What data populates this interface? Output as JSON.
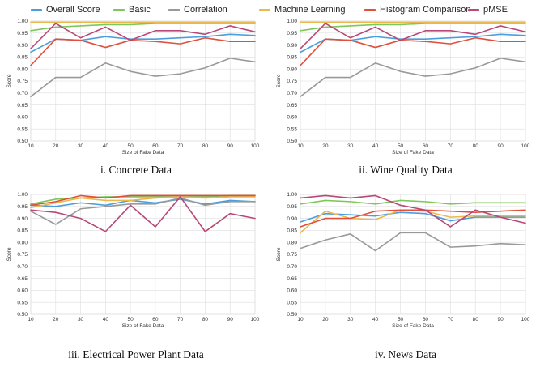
{
  "legend": [
    {
      "name": "Overall Score",
      "color": "#4a9ee0"
    },
    {
      "name": "Basic",
      "color": "#7dc85a"
    },
    {
      "name": "Correlation",
      "color": "#999999"
    },
    {
      "name": "Machine Learning",
      "color": "#eab84c"
    },
    {
      "name": "Histogram Comparison",
      "color": "#e0503a"
    },
    {
      "name": "pMSE",
      "color": "#b84878"
    }
  ],
  "chart_data": [
    {
      "type": "line",
      "caption": "i. Concrete Data",
      "xlabel": "Size of Fake Data",
      "ylabel": "Score",
      "x": [
        10,
        20,
        30,
        40,
        50,
        60,
        70,
        80,
        90,
        100
      ],
      "xlim": [
        10,
        100
      ],
      "ylim": [
        0.5,
        1.0
      ],
      "yticks": [
        "0.50",
        "0.55",
        "0.60",
        "0.65",
        "0.70",
        "0.75",
        "0.80",
        "0.85",
        "0.90",
        "0.95",
        "1.00"
      ],
      "grid": true,
      "series": [
        {
          "name": "Overall Score",
          "values": [
            0.87,
            0.925,
            0.92,
            0.935,
            0.925,
            0.925,
            0.93,
            0.935,
            0.945,
            0.94
          ]
        },
        {
          "name": "Basic",
          "values": [
            0.96,
            0.975,
            0.98,
            0.985,
            0.985,
            0.99,
            0.99,
            0.99,
            0.99,
            0.99
          ]
        },
        {
          "name": "Correlation",
          "values": [
            0.685,
            0.765,
            0.765,
            0.825,
            0.79,
            0.77,
            0.78,
            0.805,
            0.845,
            0.83
          ]
        },
        {
          "name": "Machine Learning",
          "values": [
            0.995,
            0.995,
            0.995,
            0.995,
            0.995,
            0.995,
            0.995,
            0.995,
            0.995,
            0.995
          ]
        },
        {
          "name": "Histogram Comparison",
          "values": [
            0.815,
            0.925,
            0.92,
            0.89,
            0.92,
            0.915,
            0.905,
            0.93,
            0.915,
            0.915
          ]
        },
        {
          "name": "pMSE",
          "values": [
            0.885,
            0.99,
            0.93,
            0.975,
            0.92,
            0.96,
            0.96,
            0.945,
            0.98,
            0.955
          ]
        }
      ]
    },
    {
      "type": "line",
      "caption": "ii. Wine Quality Data",
      "xlabel": "Size of Fake Data",
      "ylabel": "Score",
      "x": [
        10,
        20,
        30,
        40,
        50,
        60,
        70,
        80,
        90,
        100
      ],
      "xlim": [
        10,
        100
      ],
      "ylim": [
        0.5,
        1.0
      ],
      "yticks": [
        "0.50",
        "0.55",
        "0.60",
        "0.65",
        "0.70",
        "0.75",
        "0.80",
        "0.85",
        "0.90",
        "0.95",
        "1.00"
      ],
      "grid": true,
      "series": [
        {
          "name": "Overall Score",
          "values": [
            0.87,
            0.925,
            0.92,
            0.935,
            0.925,
            0.925,
            0.93,
            0.935,
            0.945,
            0.94
          ]
        },
        {
          "name": "Basic",
          "values": [
            0.96,
            0.975,
            0.98,
            0.985,
            0.985,
            0.99,
            0.99,
            0.99,
            0.99,
            0.99
          ]
        },
        {
          "name": "Correlation",
          "values": [
            0.685,
            0.765,
            0.765,
            0.825,
            0.79,
            0.77,
            0.78,
            0.805,
            0.845,
            0.83
          ]
        },
        {
          "name": "Machine Learning",
          "values": [
            0.995,
            0.995,
            0.995,
            0.995,
            0.995,
            0.995,
            0.995,
            0.995,
            0.995,
            0.995
          ]
        },
        {
          "name": "Histogram Comparison",
          "values": [
            0.815,
            0.925,
            0.92,
            0.89,
            0.92,
            0.915,
            0.905,
            0.93,
            0.915,
            0.915
          ]
        },
        {
          "name": "pMSE",
          "values": [
            0.885,
            0.99,
            0.93,
            0.975,
            0.92,
            0.96,
            0.96,
            0.945,
            0.98,
            0.955
          ]
        }
      ]
    },
    {
      "type": "line",
      "caption": "iii. Electrical Power Plant Data",
      "xlabel": "Size of Fake Data",
      "ylabel": "Score",
      "x": [
        10,
        20,
        30,
        40,
        50,
        60,
        70,
        80,
        90,
        100
      ],
      "xlim": [
        10,
        100
      ],
      "ylim": [
        0.5,
        1.0
      ],
      "yticks": [
        "0.50",
        "0.55",
        "0.60",
        "0.65",
        "0.70",
        "0.75",
        "0.80",
        "0.85",
        "0.90",
        "0.95",
        "1.00"
      ],
      "grid": true,
      "series": [
        {
          "name": "Overall Score",
          "values": [
            0.955,
            0.95,
            0.965,
            0.955,
            0.975,
            0.965,
            0.98,
            0.96,
            0.975,
            0.97
          ]
        },
        {
          "name": "Basic",
          "values": [
            0.96,
            0.98,
            0.985,
            0.99,
            0.99,
            0.99,
            0.99,
            0.99,
            0.995,
            0.995
          ]
        },
        {
          "name": "Correlation",
          "values": [
            0.93,
            0.875,
            0.94,
            0.95,
            0.96,
            0.96,
            0.985,
            0.955,
            0.97,
            0.97
          ]
        },
        {
          "name": "Machine Learning",
          "values": [
            0.945,
            0.965,
            0.985,
            0.975,
            0.975,
            0.985,
            0.99,
            0.985,
            0.99,
            0.99
          ]
        },
        {
          "name": "Histogram Comparison",
          "values": [
            0.955,
            0.97,
            0.995,
            0.985,
            0.995,
            0.995,
            0.995,
            0.995,
            0.995,
            0.995
          ]
        },
        {
          "name": "pMSE",
          "values": [
            0.935,
            0.925,
            0.9,
            0.845,
            0.955,
            0.865,
            0.99,
            0.845,
            0.92,
            0.9
          ]
        }
      ]
    },
    {
      "type": "line",
      "caption": "iv. News Data",
      "xlabel": "Size of Fake Data",
      "ylabel": "Score",
      "x": [
        10,
        20,
        30,
        40,
        50,
        60,
        70,
        80,
        90,
        100
      ],
      "xlim": [
        10,
        100
      ],
      "ylim": [
        0.5,
        1.0
      ],
      "yticks": [
        "0.50",
        "0.55",
        "0.60",
        "0.65",
        "0.70",
        "0.75",
        "0.80",
        "0.85",
        "0.90",
        "0.95",
        "1.00"
      ],
      "grid": true,
      "series": [
        {
          "name": "Overall Score",
          "values": [
            0.885,
            0.92,
            0.915,
            0.91,
            0.925,
            0.92,
            0.89,
            0.905,
            0.905,
            0.905
          ]
        },
        {
          "name": "Basic",
          "values": [
            0.96,
            0.975,
            0.97,
            0.96,
            0.975,
            0.97,
            0.96,
            0.965,
            0.965,
            0.965
          ]
        },
        {
          "name": "Correlation",
          "values": [
            0.775,
            0.81,
            0.835,
            0.765,
            0.84,
            0.84,
            0.78,
            0.785,
            0.795,
            0.79
          ]
        },
        {
          "name": "Machine Learning",
          "values": [
            0.84,
            0.93,
            0.9,
            0.895,
            0.935,
            0.93,
            0.905,
            0.91,
            0.91,
            0.91
          ]
        },
        {
          "name": "Histogram Comparison",
          "values": [
            0.865,
            0.9,
            0.9,
            0.93,
            0.935,
            0.935,
            0.93,
            0.925,
            0.93,
            0.935
          ]
        },
        {
          "name": "pMSE",
          "values": [
            0.985,
            0.995,
            0.985,
            0.995,
            0.955,
            0.935,
            0.865,
            0.935,
            0.905,
            0.88
          ]
        }
      ]
    }
  ]
}
